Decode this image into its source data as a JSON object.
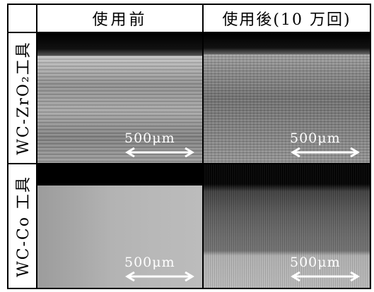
{
  "header": {
    "col_before": "使用前",
    "col_after": "使用後(10 万回)"
  },
  "rows": [
    {
      "label": "WC-ZrO₂工具"
    },
    {
      "label": "WC-Co 工具"
    }
  ],
  "scale_bar": {
    "label": "500μm"
  }
}
